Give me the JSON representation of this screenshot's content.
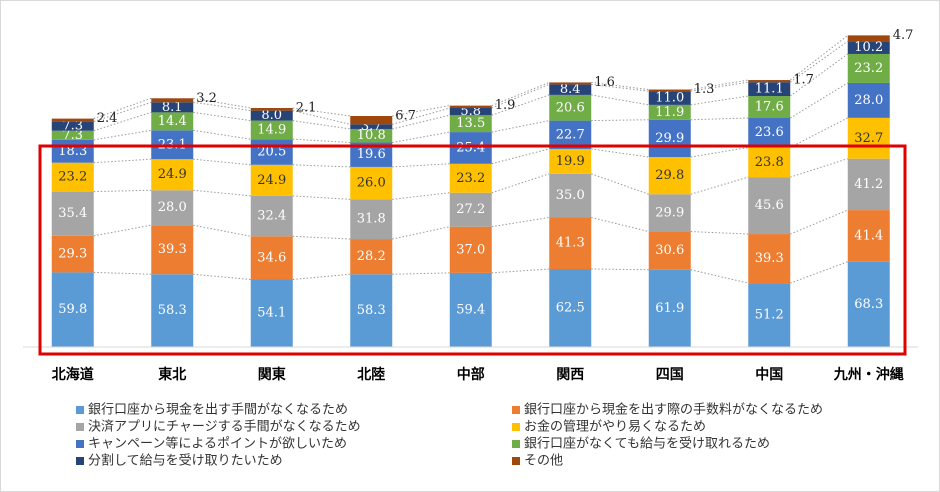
{
  "chart_data": {
    "type": "stacked_bar",
    "categories": [
      "北海道",
      "東北",
      "関東",
      "北陸",
      "中部",
      "関西",
      "四国",
      "中国",
      "九州・沖縄"
    ],
    "ylim": [
      0,
      250
    ],
    "series": [
      {
        "name": "銀行口座から現金を出す手間がなくなるため",
        "color": "#5b9bd5",
        "values": [
          59.8,
          58.3,
          54.1,
          58.3,
          59.4,
          62.5,
          61.9,
          51.2,
          68.3
        ]
      },
      {
        "name": "銀行口座から現金を出す際の手数料がなくなるため",
        "color": "#ed7d31",
        "values": [
          29.3,
          39.3,
          34.6,
          28.2,
          37.0,
          41.3,
          30.6,
          39.3,
          41.4
        ],
        "value_labels": [
          "29.3",
          "39.3",
          "34.6",
          "28.2",
          "37.0",
          "41.3",
          "30.6",
          "39.3",
          "41.4"
        ]
      },
      {
        "name": "決済アプリにチャージする手間がなくなるため",
        "color": "#a5a5a5",
        "values": [
          35.4,
          28.0,
          32.4,
          31.8,
          27.2,
          35.0,
          29.9,
          45.6,
          41.2
        ],
        "value_labels": [
          "35.4",
          "28.0",
          "32.4",
          "31.8",
          "27.2",
          "35.0",
          "29.9",
          "45.6",
          "41.2"
        ]
      },
      {
        "name": "お金の管理がやり易くなるため",
        "color": "#ffc000",
        "values": [
          23.2,
          24.9,
          24.9,
          26.0,
          23.2,
          19.9,
          29.8,
          23.8,
          32.7
        ],
        "value_labels": [
          "23.2",
          "24.9",
          "24.9",
          "26.0",
          "23.2",
          "19.9",
          "29.8",
          "23.8",
          "32.7"
        ]
      },
      {
        "name": "キャンペーン等によるポイントが欲しいため",
        "color": "#4472c4",
        "values": [
          18.3,
          23.1,
          20.5,
          19.6,
          25.4,
          22.7,
          29.9,
          23.6,
          28.0
        ],
        "value_labels": [
          "18.3",
          "23.1",
          "20.5",
          "19.6",
          "25.4",
          "22.7",
          "29.9",
          "23.6",
          "28.0"
        ]
      },
      {
        "name": "銀行口座がなくても給与を受け取れるため",
        "color": "#70ad47",
        "values": [
          7.3,
          14.4,
          14.9,
          10.8,
          13.5,
          20.6,
          11.9,
          17.6,
          23.2
        ]
      },
      {
        "name": "分割して給与を受け取りたいため",
        "color": "#264478",
        "values": [
          7.3,
          8.1,
          8.0,
          3.7,
          5.8,
          8.4,
          11.0,
          11.1,
          10.2
        ],
        "value_labels": [
          "7.3",
          "8.1",
          "8.0",
          "3.7",
          "5.8",
          "8.4",
          "11.0",
          "11.1",
          "10.2"
        ]
      },
      {
        "name": "その他",
        "color": "#9e480e",
        "values": [
          2.4,
          3.2,
          2.1,
          6.7,
          1.9,
          1.6,
          1.3,
          1.7,
          4.7
        ]
      }
    ]
  }
}
